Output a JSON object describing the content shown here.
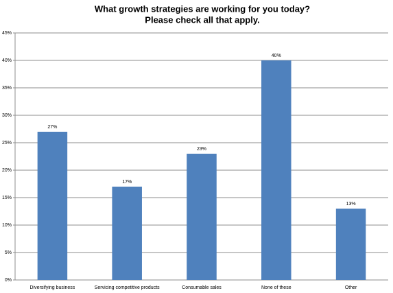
{
  "chart_data": {
    "type": "bar",
    "title": "What growth strategies are working for you today?",
    "subtitle": "Please check all that apply.",
    "categories": [
      "Diversifying business",
      "Servicing competitive products",
      "Consumable sales",
      "None of these",
      "Other"
    ],
    "values": [
      27,
      17,
      23,
      40,
      13
    ],
    "value_labels": [
      "27%",
      "17%",
      "23%",
      "40%",
      "13%"
    ],
    "color": "#4f81bd",
    "ylim": [
      0,
      45
    ],
    "yticks": [
      {
        "value": 0,
        "label": "0%"
      },
      {
        "value": 5,
        "label": "5%"
      },
      {
        "value": 10,
        "label": "10%"
      },
      {
        "value": 15,
        "label": "15%"
      },
      {
        "value": 20,
        "label": "20%"
      },
      {
        "value": 25,
        "label": "25%"
      },
      {
        "value": 30,
        "label": "30%"
      },
      {
        "value": 35,
        "label": "35%"
      },
      {
        "value": 40,
        "label": "40%"
      },
      {
        "value": 45,
        "label": "45%"
      }
    ],
    "grid": true
  }
}
